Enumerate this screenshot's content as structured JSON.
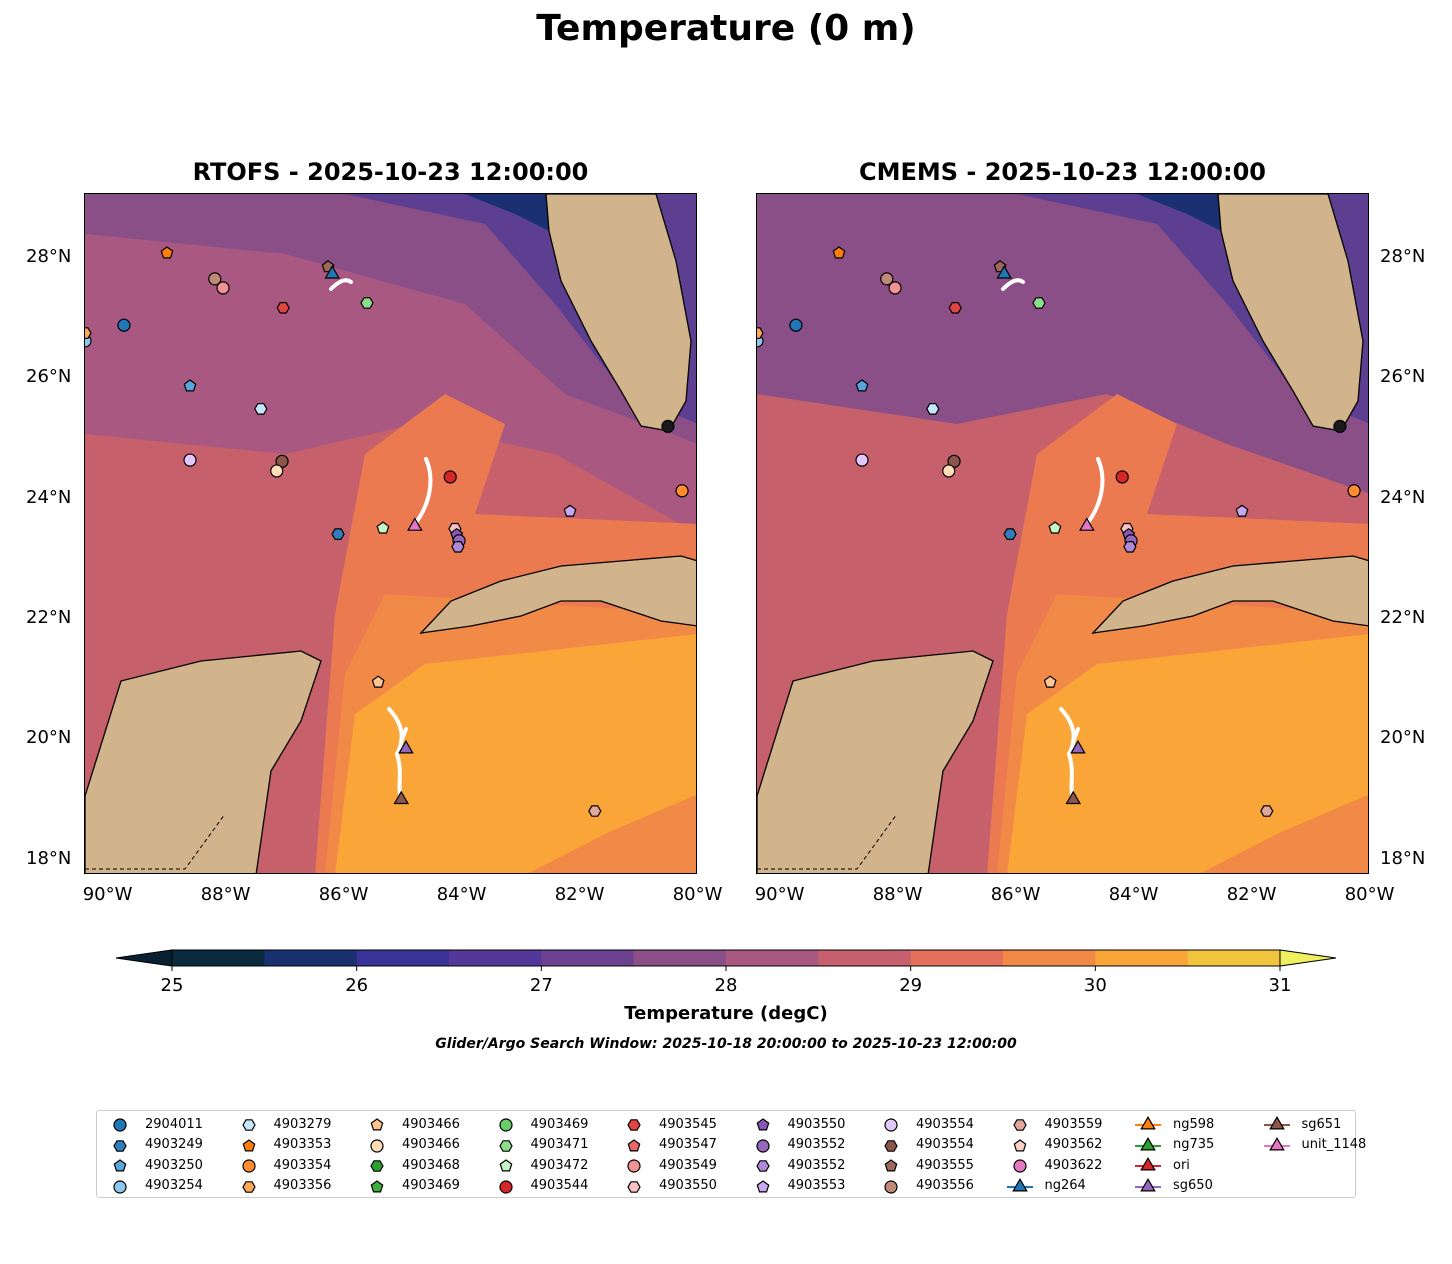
{
  "title": "Temperature (0 m)",
  "panels": [
    {
      "title": "RTOFS - 2025-10-23 12:00:00"
    },
    {
      "title": "CMEMS - 2025-10-23 12:00:00"
    }
  ],
  "lon_ticks": [
    "90°W",
    "88°W",
    "86°W",
    "84°W",
    "82°W",
    "80°W"
  ],
  "lat_ticks": [
    "28°N",
    "26°N",
    "24°N",
    "22°N",
    "20°N",
    "18°N"
  ],
  "colorbar": {
    "label": "Temperature (degC)",
    "ticks": [
      "25",
      "26",
      "27",
      "28",
      "29",
      "30",
      "31"
    ],
    "range": [
      25,
      31
    ],
    "step": 0.5,
    "colors": [
      "#0b2a3e",
      "#1a3070",
      "#3a3397",
      "#53389a",
      "#6c4290",
      "#8b4f88",
      "#a95882",
      "#c7606e",
      "#e2705a",
      "#f28a47",
      "#f9a537",
      "#f1c43e"
    ],
    "under": "#082030",
    "over": "#eef060"
  },
  "search_window": "Glider/Argo Search Window: 2025-10-18 20:00:00 to 2025-10-23 12:00:00",
  "legend": [
    {
      "label": "2904011",
      "shape": "circle",
      "color": "#1f77b4"
    },
    {
      "label": "4903249",
      "shape": "hexagon",
      "color": "#2f7fbf"
    },
    {
      "label": "4903250",
      "shape": "pentagon",
      "color": "#5aa5db"
    },
    {
      "label": "4903254",
      "shape": "circle",
      "color": "#8ec6ec"
    },
    {
      "label": "4903279",
      "shape": "hexagon",
      "color": "#c6e6fb"
    },
    {
      "label": "4903353",
      "shape": "pentagon",
      "color": "#ff7f0e"
    },
    {
      "label": "4903354",
      "shape": "circle",
      "color": "#ff8c2e"
    },
    {
      "label": "4903356",
      "shape": "hexagon",
      "color": "#ffa858"
    },
    {
      "label": "4903466",
      "shape": "pentagon",
      "color": "#ffc490"
    },
    {
      "label": "4903466",
      "shape": "circle",
      "color": "#ffdcb8"
    },
    {
      "label": "4903468",
      "shape": "hexagon",
      "color": "#2ca02c"
    },
    {
      "label": "4903469",
      "shape": "pentagon",
      "color": "#3fae3f"
    },
    {
      "label": "4903469",
      "shape": "circle",
      "color": "#6acc6a"
    },
    {
      "label": "4903471",
      "shape": "hexagon",
      "color": "#8edc8e"
    },
    {
      "label": "4903472",
      "shape": "pentagon",
      "color": "#c6f6c6"
    },
    {
      "label": "4903544",
      "shape": "circle",
      "color": "#d62728"
    },
    {
      "label": "4903545",
      "shape": "hexagon",
      "color": "#e04444"
    },
    {
      "label": "4903547",
      "shape": "pentagon",
      "color": "#ea6a6a"
    },
    {
      "label": "4903549",
      "shape": "circle",
      "color": "#f29292"
    },
    {
      "label": "4903550",
      "shape": "hexagon",
      "color": "#fbc0c0"
    },
    {
      "label": "4903550",
      "shape": "pentagon",
      "color": "#8658b4"
    },
    {
      "label": "4903552",
      "shape": "circle",
      "color": "#9467bd"
    },
    {
      "label": "4903552",
      "shape": "hexagon",
      "color": "#ae8ad6"
    },
    {
      "label": "4903553",
      "shape": "pentagon",
      "color": "#c8a8f0"
    },
    {
      "label": "4903554",
      "shape": "circle",
      "color": "#e0c8fb"
    },
    {
      "label": "4903554",
      "shape": "hexagon",
      "color": "#8c564b"
    },
    {
      "label": "4903555",
      "shape": "pentagon",
      "color": "#a0685a"
    },
    {
      "label": "4903556",
      "shape": "circle",
      "color": "#c08a78"
    },
    {
      "label": "4903559",
      "shape": "hexagon",
      "color": "#e0a89a"
    },
    {
      "label": "4903562",
      "shape": "pentagon",
      "color": "#fcd2c4"
    },
    {
      "label": "4903622",
      "shape": "circle",
      "color": "#e377c2"
    },
    {
      "label": "ng264",
      "shape": "triangle",
      "color": "#1f77b4"
    },
    {
      "label": "ng598",
      "shape": "triangle",
      "color": "#ff7f0e"
    },
    {
      "label": "ng735",
      "shape": "triangle",
      "color": "#2ca02c"
    },
    {
      "label": "ori",
      "shape": "triangle",
      "color": "#d62728"
    },
    {
      "label": "sg650",
      "shape": "triangle",
      "color": "#9467bd"
    },
    {
      "label": "sg651",
      "shape": "triangle",
      "color": "#8c564b"
    },
    {
      "label": "unit_1148",
      "shape": "triangle",
      "color": "#e377c2"
    }
  ],
  "markers": [
    {
      "shape": "pentagon",
      "color": "#ff7f0e",
      "lon": -89.01,
      "lat": 28.08
    },
    {
      "shape": "circle",
      "color": "#c08a78",
      "lon": -88.2,
      "lat": 27.65
    },
    {
      "shape": "circle",
      "color": "#f29292",
      "lon": -88.06,
      "lat": 27.5
    },
    {
      "shape": "pentagon",
      "color": "#a0685a",
      "lon": -86.28,
      "lat": 27.85
    },
    {
      "shape": "triangle",
      "color": "#1f77b4",
      "lon": -86.21,
      "lat": 27.73
    },
    {
      "shape": "hexagon",
      "color": "#e04444",
      "lon": -87.04,
      "lat": 27.17
    },
    {
      "shape": "hexagon",
      "color": "#8edc8e",
      "lon": -85.62,
      "lat": 27.25
    },
    {
      "shape": "circle",
      "color": "#1f77b4",
      "lon": -89.74,
      "lat": 26.88
    },
    {
      "shape": "pentagon",
      "color": "#5aa5db",
      "lon": -88.62,
      "lat": 25.87
    },
    {
      "shape": "hexagon",
      "color": "#c6e6fb",
      "lon": -87.42,
      "lat": 25.49
    },
    {
      "shape": "circle",
      "color": "#e0c8fb",
      "lon": -88.62,
      "lat": 24.64
    },
    {
      "shape": "circle",
      "color": "#8c564b",
      "lon": -87.06,
      "lat": 24.62
    },
    {
      "shape": "circle",
      "color": "#ffdcb8",
      "lon": -87.15,
      "lat": 24.46
    },
    {
      "shape": "circle",
      "color": "#d62728",
      "lon": -84.21,
      "lat": 24.36
    },
    {
      "shape": "hexagon",
      "color": "#2f7fbf",
      "lon": -86.11,
      "lat": 23.41
    },
    {
      "shape": "pentagon",
      "color": "#c6f6c6",
      "lon": -85.35,
      "lat": 23.51
    },
    {
      "shape": "triangle",
      "color": "#e377c2",
      "lon": -84.81,
      "lat": 23.54
    },
    {
      "shape": "hexagon",
      "color": "#fbc0c0",
      "lon": -84.13,
      "lat": 23.5
    },
    {
      "shape": "pentagon",
      "color": "#8658b4",
      "lon": -84.1,
      "lat": 23.4
    },
    {
      "shape": "circle",
      "color": "#9467bd",
      "lon": -84.06,
      "lat": 23.3
    },
    {
      "shape": "hexagon",
      "color": "#ae8ad6",
      "lon": -84.08,
      "lat": 23.2
    },
    {
      "shape": "pentagon",
      "color": "#c8a8f0",
      "lon": -82.18,
      "lat": 23.79
    },
    {
      "shape": "circle",
      "color": "#ff8c2e",
      "lon": -80.28,
      "lat": 24.13
    },
    {
      "shape": "circle",
      "color": "#1a1a1a",
      "lon": -80.52,
      "lat": 25.2
    },
    {
      "shape": "pentagon",
      "color": "#ffc490",
      "lon": -85.43,
      "lat": 20.95
    },
    {
      "shape": "triangle",
      "color": "#9467bd",
      "lon": -84.96,
      "lat": 19.84
    },
    {
      "shape": "triangle",
      "color": "#8c564b",
      "lon": -85.04,
      "lat": 19.0
    },
    {
      "shape": "hexagon",
      "color": "#e0a89a",
      "lon": -81.76,
      "lat": 18.81
    },
    {
      "shape": "circle",
      "color": "#8ec6ec",
      "lon": -90.4,
      "lat": 26.62
    },
    {
      "shape": "hexagon",
      "color": "#ffa858",
      "lon": -90.4,
      "lat": 26.75
    }
  ]
}
